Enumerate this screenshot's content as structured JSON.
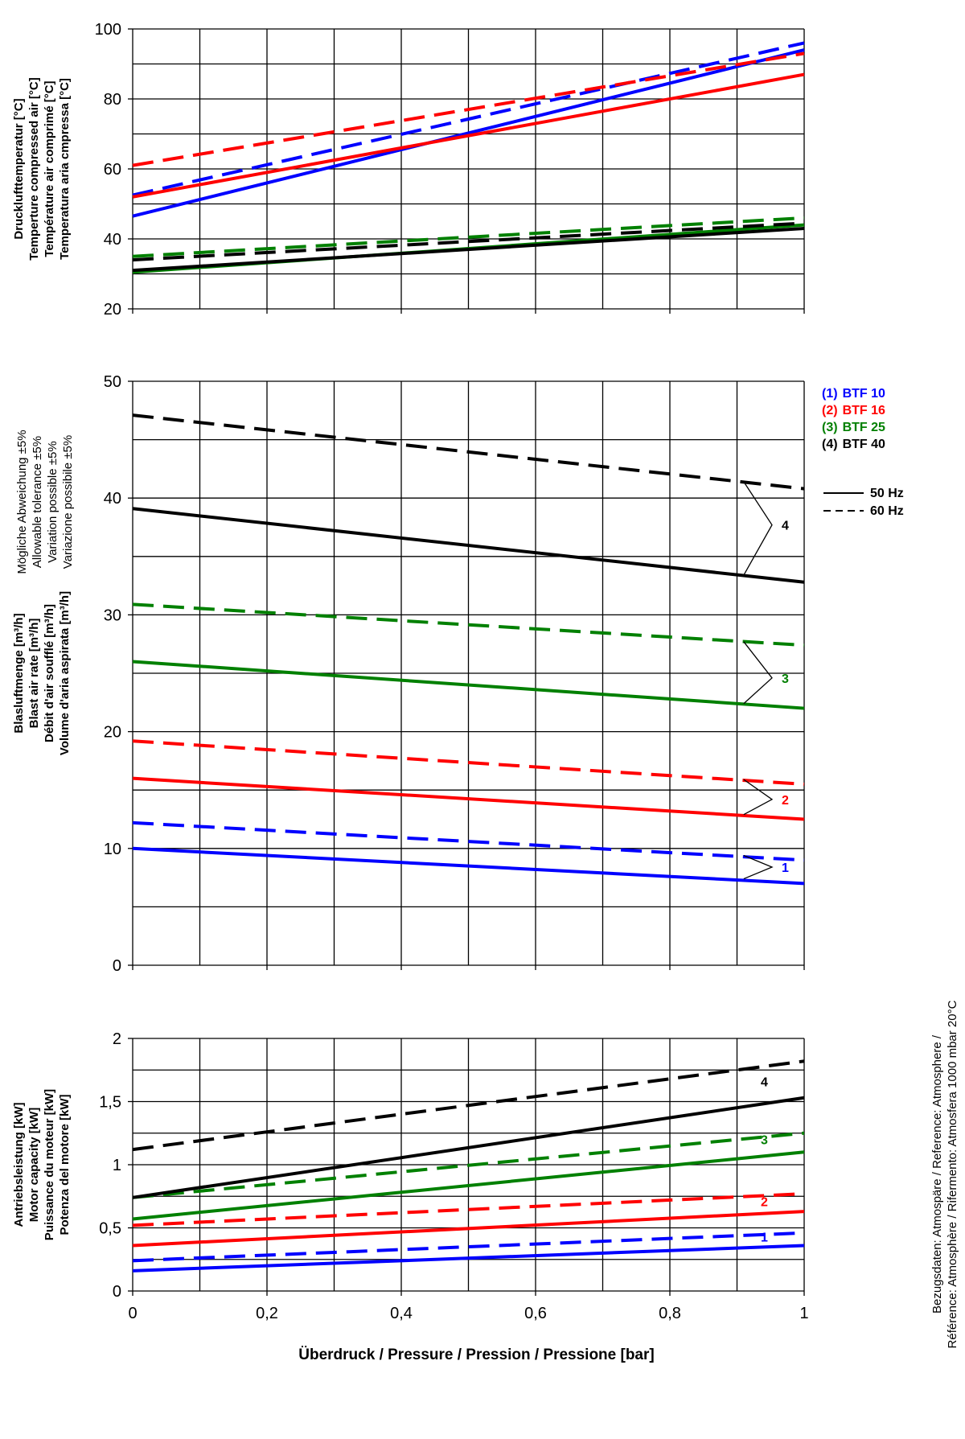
{
  "colors": {
    "btf10": "#0000ff",
    "btf16": "#ff0000",
    "btf25": "#008000",
    "btf40": "#000000",
    "grid": "#000000"
  },
  "x_axis": {
    "label": "Überdruck / Pressure / Pression / Pressione    [bar]",
    "ticks": [
      0,
      0.2,
      0.4,
      0.6,
      0.8,
      1
    ],
    "tick_labels": [
      "0",
      "0,2",
      "0,4",
      "0,6",
      "0,8",
      "1"
    ]
  },
  "legend": {
    "items": [
      {
        "num": "(1)",
        "name": "BTF 10",
        "color": "#0000ff"
      },
      {
        "num": "(2)",
        "name": "BTF 16",
        "color": "#ff0000"
      },
      {
        "num": "(3)",
        "name": "BTF 25",
        "color": "#008000"
      },
      {
        "num": "(4)",
        "name": "BTF 40",
        "color": "#000000"
      }
    ],
    "styles": [
      {
        "label": "50 Hz",
        "dash": "solid"
      },
      {
        "label": "60 Hz",
        "dash": "dashed"
      }
    ]
  },
  "tolerance_note": [
    "Mögliche Abweichung ±5%",
    "Allowable tolerance ±5%",
    "Variation possible ±5%",
    "Variazione possibile ±5%"
  ],
  "reference_note": [
    "Bezugsdaten: Atmospäre / Reference: Atmosphere /",
    "Référence: Atmosphère / Rifermento: Atmosfera   1000 mbar 20°C"
  ],
  "chart_data": [
    {
      "type": "line",
      "ylabel_lines": [
        "Drucklufttemperatur [°C]",
        "Temperture compressed air [°C]",
        "Température air comprimé [°C]",
        "Temperatura aria cmpressa [°C]"
      ],
      "ylim": [
        20,
        100
      ],
      "yticks": [
        20,
        40,
        60,
        80,
        100
      ],
      "ytick_labels": [
        "20",
        "40",
        "60",
        "80",
        "100"
      ],
      "grid_lines": [
        20,
        30,
        40,
        50,
        60,
        70,
        80,
        90,
        100
      ],
      "x": [
        0,
        1
      ],
      "series": [
        {
          "model": "BTF 10",
          "freq": "50 Hz",
          "color": "#0000ff",
          "dash": false,
          "values": [
            46.5,
            94
          ]
        },
        {
          "model": "BTF 10",
          "freq": "60 Hz",
          "color": "#0000ff",
          "dash": true,
          "values": [
            52.5,
            96
          ]
        },
        {
          "model": "BTF 16",
          "freq": "50 Hz",
          "color": "#ff0000",
          "dash": false,
          "values": [
            52,
            87
          ]
        },
        {
          "model": "BTF 16",
          "freq": "60 Hz",
          "color": "#ff0000",
          "dash": true,
          "values": [
            61,
            93
          ]
        },
        {
          "model": "BTF 25",
          "freq": "50 Hz",
          "color": "#008000",
          "dash": false,
          "values": [
            30.5,
            44
          ]
        },
        {
          "model": "BTF 25",
          "freq": "60 Hz",
          "color": "#008000",
          "dash": true,
          "values": [
            35,
            46
          ]
        },
        {
          "model": "BTF 40",
          "freq": "50 Hz",
          "color": "#000000",
          "dash": false,
          "values": [
            31,
            43
          ]
        },
        {
          "model": "BTF 40",
          "freq": "60 Hz",
          "color": "#000000",
          "dash": true,
          "values": [
            34,
            44.5
          ]
        }
      ],
      "annotations": []
    },
    {
      "type": "line",
      "ylabel_lines": [
        "Blasluftmenge [m³/h]",
        "Blast air rate [m³/h]",
        "Débit d'air soufflé [m³/h]",
        "Volume d'aria aspirata [m³/h]"
      ],
      "ylim": [
        0,
        50
      ],
      "yticks": [
        0,
        10,
        20,
        30,
        40,
        50
      ],
      "ytick_labels": [
        "0",
        "10",
        "20",
        "30",
        "40",
        "50"
      ],
      "grid_lines": [
        0,
        5,
        10,
        15,
        20,
        25,
        30,
        35,
        40,
        45,
        50
      ],
      "x": [
        0,
        1
      ],
      "series": [
        {
          "model": "BTF 10",
          "freq": "50 Hz",
          "color": "#0000ff",
          "dash": false,
          "values": [
            10,
            7
          ]
        },
        {
          "model": "BTF 10",
          "freq": "60 Hz",
          "color": "#0000ff",
          "dash": true,
          "values": [
            12.2,
            9
          ]
        },
        {
          "model": "BTF 16",
          "freq": "50 Hz",
          "color": "#ff0000",
          "dash": false,
          "values": [
            16,
            12.5
          ]
        },
        {
          "model": "BTF 16",
          "freq": "60 Hz",
          "color": "#ff0000",
          "dash": true,
          "values": [
            19.2,
            15.5
          ]
        },
        {
          "model": "BTF 25",
          "freq": "50 Hz",
          "color": "#008000",
          "dash": false,
          "values": [
            26,
            22
          ]
        },
        {
          "model": "BTF 25",
          "freq": "60 Hz",
          "color": "#008000",
          "dash": true,
          "values": [
            30.9,
            27.4
          ]
        },
        {
          "model": "BTF 40",
          "freq": "50 Hz",
          "color": "#000000",
          "dash": false,
          "values": [
            39.1,
            32.8
          ]
        },
        {
          "model": "BTF 40",
          "freq": "60 Hz",
          "color": "#000000",
          "dash": true,
          "values": [
            47.1,
            40.8
          ]
        }
      ],
      "annotations": [
        {
          "text": "1",
          "color": "#0000ff",
          "y_label": 8.4,
          "y_top": 9.4,
          "y_bottom": 7.4
        },
        {
          "text": "2",
          "color": "#ff0000",
          "y_label": 14.2,
          "y_top": 15.9,
          "y_bottom": 12.9
        },
        {
          "text": "3",
          "color": "#008000",
          "y_label": 24.6,
          "y_top": 27.7,
          "y_bottom": 22.4
        },
        {
          "text": "4",
          "color": "#000000",
          "y_label": 37.7,
          "y_top": 41.4,
          "y_bottom": 33.4
        }
      ]
    },
    {
      "type": "line",
      "ylabel_lines": [
        "Antriebsleistung [kW]",
        "Motor capacity [kW]",
        "Puissance du moteur [kW]",
        "Potenza del motore [kW]"
      ],
      "ylim": [
        0,
        2
      ],
      "yticks": [
        0,
        0.5,
        1,
        1.5,
        2
      ],
      "ytick_labels": [
        "0",
        "0,5",
        "1",
        "1,5",
        "2"
      ],
      "grid_lines": [
        0,
        0.25,
        0.5,
        0.75,
        1,
        1.25,
        1.5,
        1.75,
        2
      ],
      "x": [
        0,
        1
      ],
      "series": [
        {
          "model": "BTF 10",
          "freq": "50 Hz",
          "color": "#0000ff",
          "dash": false,
          "values": [
            0.16,
            0.36
          ]
        },
        {
          "model": "BTF 10",
          "freq": "60 Hz",
          "color": "#0000ff",
          "dash": true,
          "values": [
            0.24,
            0.46
          ]
        },
        {
          "model": "BTF 16",
          "freq": "50 Hz",
          "color": "#ff0000",
          "dash": false,
          "values": [
            0.36,
            0.63
          ]
        },
        {
          "model": "BTF 16",
          "freq": "60 Hz",
          "color": "#ff0000",
          "dash": true,
          "values": [
            0.52,
            0.77
          ]
        },
        {
          "model": "BTF 25",
          "freq": "50 Hz",
          "color": "#008000",
          "dash": false,
          "values": [
            0.57,
            1.1
          ]
        },
        {
          "model": "BTF 25",
          "freq": "60 Hz",
          "color": "#008000",
          "dash": true,
          "values": [
            0.74,
            1.25
          ]
        },
        {
          "model": "BTF 40",
          "freq": "50 Hz",
          "color": "#000000",
          "dash": false,
          "values": [
            0.74,
            1.53
          ]
        },
        {
          "model": "BTF 40",
          "freq": "60 Hz",
          "color": "#000000",
          "dash": true,
          "values": [
            1.12,
            1.82
          ]
        }
      ],
      "annotations": [
        {
          "text": "1",
          "color": "#0000ff",
          "y_label": 0.43
        },
        {
          "text": "2",
          "color": "#ff0000",
          "y_label": 0.71
        },
        {
          "text": "3",
          "color": "#008000",
          "y_label": 1.2
        },
        {
          "text": "4",
          "color": "#000000",
          "y_label": 1.66
        }
      ]
    }
  ]
}
